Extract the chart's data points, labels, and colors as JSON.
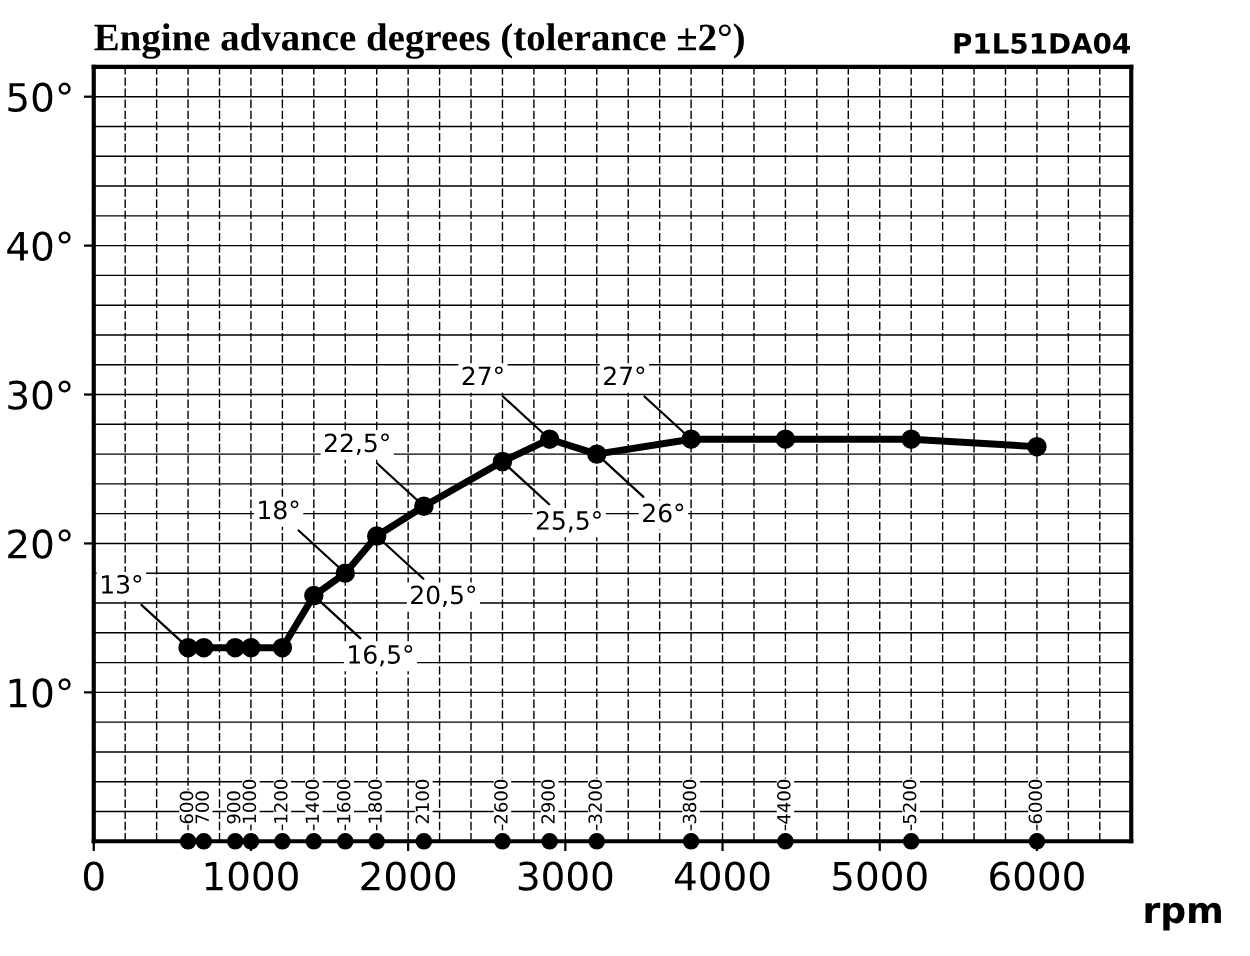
{
  "chart_data": {
    "type": "line",
    "title": "Engine advance degrees (tolerance ±2°)",
    "xlabel": "rpm",
    "annotations": [
      "P1L51DA04",
      {
        "text": "600",
        "x": 600,
        "y": 0
      },
      {
        "text": "700",
        "x": 700,
        "y": 0
      },
      {
        "text": "900",
        "x": 900,
        "y": 0
      },
      {
        "text": "1000",
        "x": 1000,
        "y": 0
      },
      {
        "text": "1200",
        "x": 1200,
        "y": 0
      },
      {
        "text": "1400",
        "x": 1400,
        "y": 0
      },
      {
        "text": "1600",
        "x": 1600,
        "y": 0
      },
      {
        "text": "1800",
        "x": 1800,
        "y": 0
      },
      {
        "text": "2100",
        "x": 2100,
        "y": 0
      },
      {
        "text": "2600",
        "x": 2600,
        "y": 0
      },
      {
        "text": "2900",
        "x": 2900,
        "y": 0
      },
      {
        "text": "3200",
        "x": 3200,
        "y": 0
      },
      {
        "text": "3800",
        "x": 3800,
        "y": 0
      },
      {
        "text": "4400",
        "x": 4400,
        "y": 0
      },
      {
        "text": "5200",
        "x": 5200,
        "y": 0
      },
      {
        "text": "6000",
        "x": 6000,
        "y": 0
      }
    ],
    "xlim": [
      0,
      6600
    ],
    "xticks": [
      0,
      1000,
      2000,
      3000,
      4000,
      5000,
      6000
    ],
    "ylim": [
      0,
      52
    ],
    "yticks": [
      {
        "value": 10,
        "label": "10°"
      },
      {
        "value": 20,
        "label": "20°"
      },
      {
        "value": 30,
        "label": "30°"
      },
      {
        "value": 40,
        "label": "40°"
      },
      {
        "value": 50,
        "label": "50°"
      }
    ],
    "grid": true,
    "marker": "circle",
    "line_style": "solid",
    "series": [
      {
        "color": "#000000",
        "x": [
          600,
          700,
          900,
          1000,
          1200,
          1400,
          1600,
          1800,
          2100,
          2600,
          2900,
          3200,
          3800,
          4400,
          5200,
          6000
        ],
        "values": [
          13,
          13,
          13,
          13,
          13,
          16.5,
          18,
          20.5,
          22.5,
          25.5,
          27,
          26,
          27,
          27,
          27,
          26.5
        ],
        "value_labels": [
          "13°",
          null,
          null,
          null,
          null,
          "16,5°",
          "18°",
          "20,5°",
          "22,5°",
          "25,5°",
          "27°",
          "26°",
          "27°",
          null,
          null,
          null
        ]
      }
    ]
  }
}
